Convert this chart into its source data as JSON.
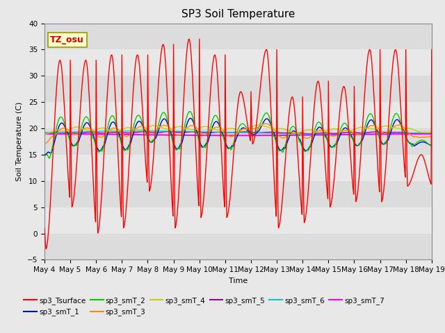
{
  "title": "SP3 Soil Temperature",
  "xlabel": "Time",
  "ylabel": "Soil Temperature (C)",
  "ylim": [
    -5,
    40
  ],
  "yticks": [
    -5,
    0,
    5,
    10,
    15,
    20,
    25,
    30,
    35,
    40
  ],
  "tz_label": "TZ_osu",
  "series_colors": {
    "sp3_Tsurface": "#FF0000",
    "sp3_smT_1": "#0000CC",
    "sp3_smT_2": "#00CC00",
    "sp3_smT_3": "#FF8800",
    "sp3_smT_4": "#CCCC00",
    "sp3_smT_5": "#9900AA",
    "sp3_smT_6": "#00CCCC",
    "sp3_smT_7": "#FF00FF"
  },
  "xticklabels": [
    "May 4",
    "May 5",
    "May 6",
    "May 7",
    "May 8",
    "May 9",
    "May 10",
    "May 11",
    "May 12",
    "May 13",
    "May 14",
    "May 15",
    "May 16",
    "May 17",
    "May 18",
    "May 19"
  ],
  "figure_bg": "#E8E8E8",
  "plot_bg": "#DCDCDC",
  "band_colors": [
    "#E8E8E8",
    "#DCDCDC"
  ]
}
